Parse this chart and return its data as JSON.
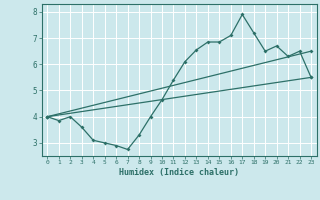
{
  "xlabel": "Humidex (Indice chaleur)",
  "ylabel": "",
  "bg_color": "#cce8ec",
  "grid_color": "#ffffff",
  "line_color": "#2d7068",
  "xlim": [
    -0.5,
    23.5
  ],
  "ylim": [
    2.5,
    8.3
  ],
  "xticks": [
    0,
    1,
    2,
    3,
    4,
    5,
    6,
    7,
    8,
    9,
    10,
    11,
    12,
    13,
    14,
    15,
    16,
    17,
    18,
    19,
    20,
    21,
    22,
    23
  ],
  "yticks": [
    3,
    4,
    5,
    6,
    7,
    8
  ],
  "line1_x": [
    0,
    1,
    2,
    3,
    4,
    5,
    6,
    7,
    8,
    9,
    10,
    11,
    12,
    13,
    14,
    15,
    16,
    17,
    18,
    19,
    20,
    21,
    22,
    23
  ],
  "line1_y": [
    4.0,
    3.85,
    4.0,
    3.6,
    3.1,
    3.0,
    2.9,
    2.75,
    3.3,
    4.0,
    4.65,
    5.4,
    6.1,
    6.55,
    6.85,
    6.85,
    7.1,
    7.9,
    7.2,
    6.5,
    6.7,
    6.3,
    6.5,
    5.5
  ],
  "line2_x": [
    0,
    23
  ],
  "line2_y": [
    4.0,
    6.5
  ],
  "line3_x": [
    0,
    23
  ],
  "line3_y": [
    4.0,
    5.5
  ]
}
